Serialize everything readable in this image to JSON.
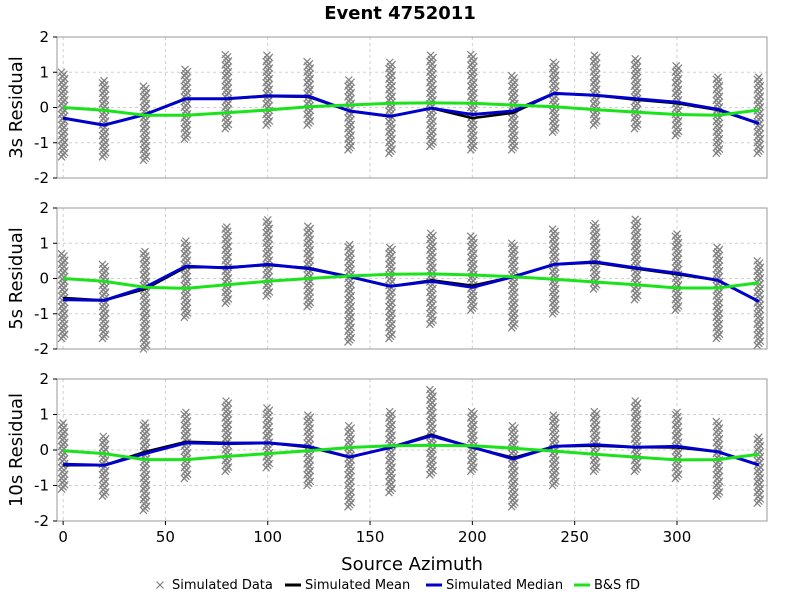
{
  "chart_data": {
    "type": "line",
    "title": "Event 4752011",
    "xlabel": "Source Azimuth",
    "xlim": [
      -3,
      344
    ],
    "xticks": [
      0,
      50,
      100,
      150,
      200,
      250,
      300
    ],
    "ylim": [
      -2,
      2
    ],
    "yticks": [
      -2,
      -1,
      0,
      1,
      2
    ],
    "grid": true,
    "legend_position": "bottom-center",
    "legend": [
      "Simulated Data",
      "Simulated Mean",
      "Simulated Median",
      "B&S fD"
    ],
    "colors": {
      "data": "#808080",
      "mean": "#000000",
      "median": "#0000cc",
      "bs_fd": "#1be31b",
      "grid": "#d0d0d0",
      "frame": "#999999"
    },
    "x": [
      0,
      20,
      40,
      60,
      80,
      100,
      120,
      140,
      160,
      180,
      200,
      220,
      240,
      260,
      280,
      300,
      320,
      340
    ],
    "panels": [
      {
        "ylabel": "3s Residual",
        "data_range": {
          "min": [
            -1.4,
            -1.4,
            -1.5,
            -0.9,
            -0.6,
            -0.5,
            -0.5,
            -1.2,
            -1.3,
            -1.1,
            -1.2,
            -1.2,
            -0.7,
            -0.5,
            -0.6,
            -0.8,
            -1.3,
            -1.3
          ],
          "max": [
            1.0,
            0.8,
            0.6,
            1.1,
            1.5,
            1.5,
            1.3,
            0.8,
            1.3,
            1.5,
            1.5,
            0.9,
            1.3,
            1.5,
            1.4,
            1.2,
            0.9,
            0.9
          ]
        },
        "series": [
          {
            "name": "Simulated Mean",
            "values": [
              -0.3,
              -0.5,
              -0.2,
              0.25,
              0.25,
              0.32,
              0.3,
              -0.1,
              -0.25,
              -0.02,
              -0.3,
              -0.15,
              0.4,
              0.35,
              0.22,
              0.12,
              -0.07,
              -0.45
            ]
          },
          {
            "name": "Simulated Median",
            "values": [
              -0.3,
              -0.5,
              -0.2,
              0.25,
              0.25,
              0.33,
              0.32,
              -0.1,
              -0.25,
              -0.02,
              -0.2,
              -0.1,
              0.4,
              0.35,
              0.25,
              0.15,
              -0.05,
              -0.45
            ]
          },
          {
            "name": "B&S fD",
            "values": [
              0.0,
              -0.08,
              -0.22,
              -0.22,
              -0.15,
              -0.07,
              0.02,
              0.07,
              0.12,
              0.13,
              0.12,
              0.07,
              0.02,
              -0.06,
              -0.13,
              -0.2,
              -0.22,
              -0.07
            ]
          }
        ]
      },
      {
        "ylabel": "5s Residual",
        "data_range": {
          "min": [
            -1.7,
            -1.7,
            -2.0,
            -1.1,
            -0.7,
            -0.5,
            -0.8,
            -1.8,
            -1.7,
            -1.3,
            -0.9,
            -1.4,
            -1.0,
            -0.3,
            -0.6,
            -0.9,
            -1.7,
            -1.9
          ],
          "max": [
            0.7,
            0.4,
            0.8,
            1.1,
            1.5,
            1.7,
            1.5,
            1.0,
            0.9,
            1.3,
            1.2,
            1.0,
            1.4,
            1.6,
            1.7,
            1.3,
            0.9,
            0.5
          ]
        },
        "series": [
          {
            "name": "Simulated Mean",
            "values": [
              -0.55,
              -0.62,
              -0.3,
              0.32,
              0.32,
              0.38,
              0.3,
              0.05,
              -0.22,
              -0.05,
              -0.2,
              0.05,
              0.4,
              0.45,
              0.28,
              0.12,
              -0.05,
              -0.65
            ]
          },
          {
            "name": "Simulated Median",
            "values": [
              -0.6,
              -0.62,
              -0.25,
              0.35,
              0.3,
              0.4,
              0.28,
              0.05,
              -0.22,
              -0.08,
              -0.25,
              0.05,
              0.4,
              0.47,
              0.3,
              0.15,
              -0.05,
              -0.65
            ]
          },
          {
            "name": "B&S fD",
            "values": [
              0.0,
              -0.08,
              -0.25,
              -0.28,
              -0.18,
              -0.08,
              0.0,
              0.07,
              0.12,
              0.13,
              0.1,
              0.05,
              -0.02,
              -0.1,
              -0.18,
              -0.27,
              -0.27,
              -0.12
            ]
          }
        ]
      },
      {
        "ylabel": "10s Residual",
        "data_range": {
          "min": [
            -1.1,
            -1.3,
            -1.7,
            -0.8,
            -0.6,
            -0.5,
            -1.0,
            -1.6,
            -1.2,
            -0.7,
            -0.6,
            -1.6,
            -1.0,
            -0.6,
            -0.6,
            -0.8,
            -1.3,
            -1.5
          ],
          "max": [
            0.8,
            0.4,
            0.8,
            1.1,
            1.4,
            1.2,
            1.0,
            0.7,
            1.1,
            1.7,
            1.1,
            0.7,
            1.0,
            1.1,
            1.4,
            1.1,
            0.8,
            0.4
          ]
        },
        "series": [
          {
            "name": "Simulated Mean",
            "values": [
              -0.43,
              -0.43,
              -0.05,
              0.23,
              0.2,
              0.2,
              0.08,
              -0.2,
              0.07,
              0.43,
              0.07,
              -0.22,
              0.1,
              0.12,
              0.08,
              0.07,
              -0.05,
              -0.42
            ]
          },
          {
            "name": "Simulated Median",
            "values": [
              -0.4,
              -0.43,
              -0.1,
              0.2,
              0.18,
              0.2,
              0.1,
              -0.2,
              0.07,
              0.4,
              0.08,
              -0.25,
              0.1,
              0.15,
              0.08,
              0.1,
              -0.05,
              -0.42
            ]
          },
          {
            "name": "B&S fD",
            "values": [
              -0.02,
              -0.1,
              -0.27,
              -0.27,
              -0.18,
              -0.1,
              -0.02,
              0.07,
              0.12,
              0.13,
              0.12,
              0.05,
              -0.03,
              -0.12,
              -0.2,
              -0.28,
              -0.27,
              -0.12
            ]
          }
        ]
      }
    ]
  }
}
